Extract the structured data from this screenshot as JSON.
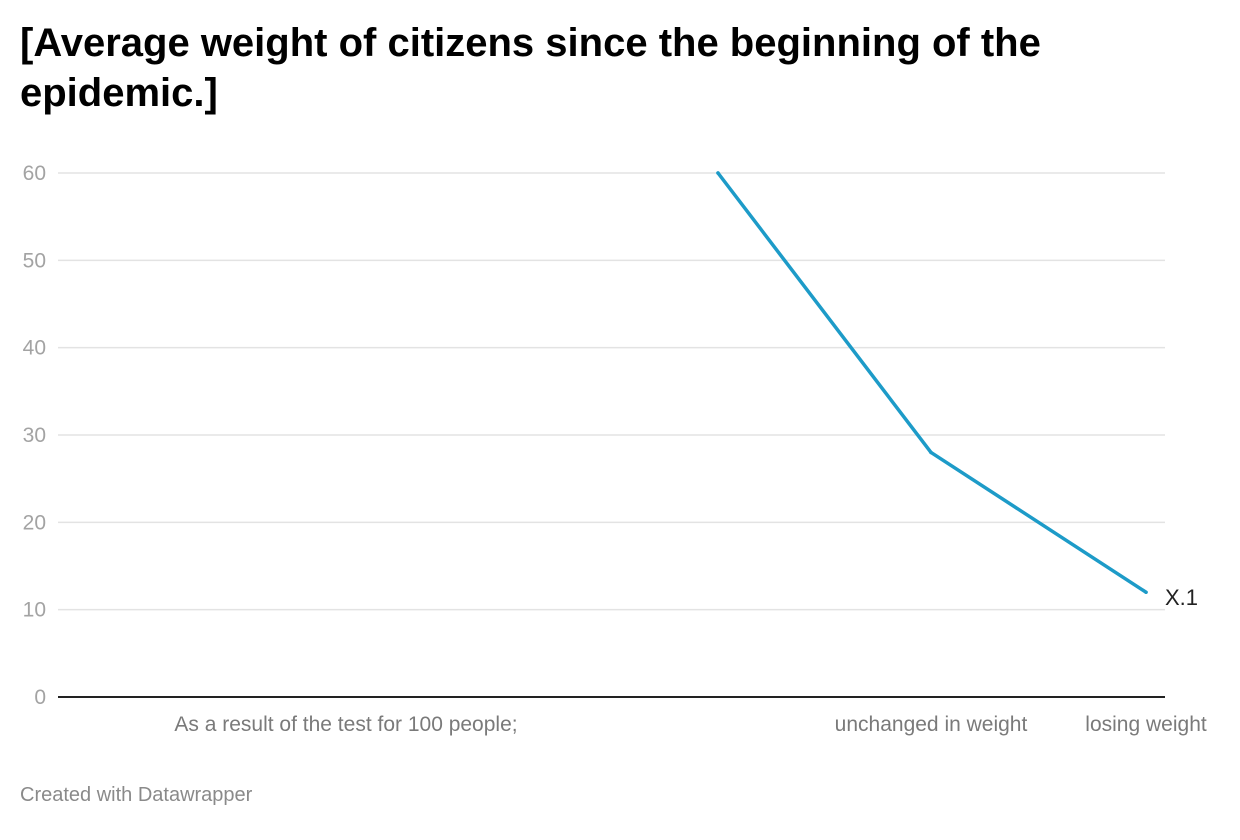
{
  "chart_data": {
    "type": "line",
    "title": "[Average weight of citizens since the beginning of the epidemic.]",
    "categories": [
      "As a result of the test for 100 people;",
      "",
      "unchanged in weight",
      "losing weight"
    ],
    "series": [
      {
        "name": "X.1",
        "values": [
          null,
          60,
          28,
          12
        ]
      }
    ],
    "ylim": [
      0,
      60
    ],
    "yticks": [
      0,
      10,
      20,
      30,
      40,
      50,
      60
    ],
    "grid": true,
    "line_color": "#1d9bc8"
  },
  "footer": "Created with Datawrapper"
}
